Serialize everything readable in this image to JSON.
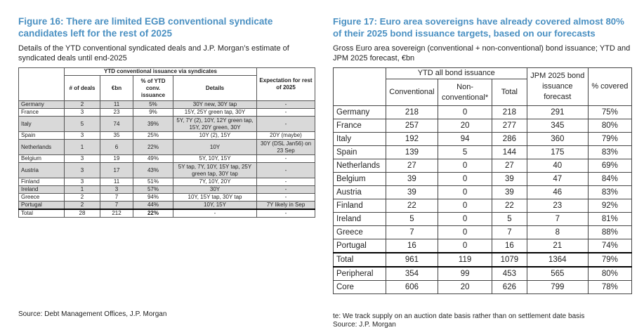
{
  "left": {
    "title": "Figure 16: There are limited EGB conventional syndicate candidates left for the rest of 2025",
    "subtitle": "Details of the YTD conventional syndicated deals and J.P. Morgan’s estimate of syndicated deals until end-2025",
    "group_header": "YTD conventional issuance via syndicates",
    "expect_header": "Expectation for rest of 2025",
    "col_deals": "# of deals",
    "col_eur": "€bn",
    "col_pct": "% of YTD conv. issuance",
    "col_details": "Details",
    "rows": [
      {
        "country": "Germany",
        "deals": "2",
        "eur": "11",
        "pct": "5%",
        "details": "30Y new, 30Y tap",
        "expect": "-"
      },
      {
        "country": "France",
        "deals": "3",
        "eur": "23",
        "pct": "9%",
        "details": "15Y, 25Y green tap, 30Y",
        "expect": "-"
      },
      {
        "country": "Italy",
        "deals": "5",
        "eur": "74",
        "pct": "39%",
        "details": "5Y, 7Y (2), 10Y, 12Y green tap, 15Y, 20Y green, 30Y",
        "expect": "-"
      },
      {
        "country": "Spain",
        "deals": "3",
        "eur": "35",
        "pct": "25%",
        "details": "10Y (2), 15Y",
        "expect": "20Y (maybe)"
      },
      {
        "country": "Netherlands",
        "deals": "1",
        "eur": "6",
        "pct": "22%",
        "details": "10Y",
        "expect": "30Y (DSL Jan56) on 23 Sep"
      },
      {
        "country": "Belgium",
        "deals": "3",
        "eur": "19",
        "pct": "49%",
        "details": "5Y, 10Y, 15Y",
        "expect": "-"
      },
      {
        "country": "Austria",
        "deals": "3",
        "eur": "17",
        "pct": "43%",
        "details": "5Y tap, 7Y, 10Y, 15Y tap, 25Y green tap, 30Y tap",
        "expect": "-"
      },
      {
        "country": "Finland",
        "deals": "3",
        "eur": "11",
        "pct": "51%",
        "details": "7Y, 10Y, 20Y",
        "expect": "-"
      },
      {
        "country": "Ireland",
        "deals": "1",
        "eur": "3",
        "pct": "57%",
        "details": "30Y",
        "expect": "-"
      },
      {
        "country": "Greece",
        "deals": "2",
        "eur": "7",
        "pct": "94%",
        "details": "10Y, 15Y tap, 30Y tap",
        "expect": "-"
      },
      {
        "country": "Portugal",
        "deals": "2",
        "eur": "7",
        "pct": "44%",
        "details": "10Y, 15Y",
        "expect": "7Y likely in Sep"
      }
    ],
    "total": {
      "country": "Total",
      "deals": "28",
      "eur": "212",
      "pct": "22%",
      "details": "-",
      "expect": "-"
    },
    "source": "Source: Debt Management Offices, J.P. Morgan"
  },
  "right": {
    "title": "Figure 17: Euro area sovereigns have already covered almost 80% of their 2025 bond issuance targets, based on our forecasts",
    "subtitle": "Gross Euro area sovereign (conventional + non-conventional) bond issuance; YTD and JPM 2025 forecast, €bn",
    "group_header": "YTD all bond issuance",
    "jpm_header": "JPM 2025 bond issuance forecast",
    "col_conv": "Conventional",
    "col_nonconv": "Non-conventional*",
    "col_total": "Total",
    "col_covered": "% covered",
    "rows": [
      {
        "country": "Germany",
        "conv": "218",
        "nonconv": "0",
        "total": "218",
        "jpm": "291",
        "covered": "75%"
      },
      {
        "country": "France",
        "conv": "257",
        "nonconv": "20",
        "total": "277",
        "jpm": "345",
        "covered": "80%"
      },
      {
        "country": "Italy",
        "conv": "192",
        "nonconv": "94",
        "total": "286",
        "jpm": "360",
        "covered": "79%"
      },
      {
        "country": "Spain",
        "conv": "139",
        "nonconv": "5",
        "total": "144",
        "jpm": "175",
        "covered": "83%"
      },
      {
        "country": "Netherlands",
        "conv": "27",
        "nonconv": "0",
        "total": "27",
        "jpm": "40",
        "covered": "69%"
      },
      {
        "country": "Belgium",
        "conv": "39",
        "nonconv": "0",
        "total": "39",
        "jpm": "47",
        "covered": "84%"
      },
      {
        "country": "Austria",
        "conv": "39",
        "nonconv": "0",
        "total": "39",
        "jpm": "46",
        "covered": "83%"
      },
      {
        "country": "Finland",
        "conv": "22",
        "nonconv": "0",
        "total": "22",
        "jpm": "23",
        "covered": "92%"
      },
      {
        "country": "Ireland",
        "conv": "5",
        "nonconv": "0",
        "total": "5",
        "jpm": "7",
        "covered": "81%"
      },
      {
        "country": "Greece",
        "conv": "7",
        "nonconv": "0",
        "total": "7",
        "jpm": "8",
        "covered": "88%"
      },
      {
        "country": "Portugal",
        "conv": "16",
        "nonconv": "0",
        "total": "16",
        "jpm": "21",
        "covered": "74%"
      }
    ],
    "summary": [
      {
        "country": "Total",
        "conv": "961",
        "nonconv": "119",
        "total": "1079",
        "jpm": "1364",
        "covered": "79%"
      },
      {
        "country": "Peripheral",
        "conv": "354",
        "nonconv": "99",
        "total": "453",
        "jpm": "565",
        "covered": "80%"
      },
      {
        "country": "Core",
        "conv": "606",
        "nonconv": "20",
        "total": "626",
        "jpm": "799",
        "covered": "78%"
      }
    ],
    "note": "te: We track supply on an auction date basis rather than on settlement date basis",
    "source": "Source: J.P. Morgan"
  }
}
